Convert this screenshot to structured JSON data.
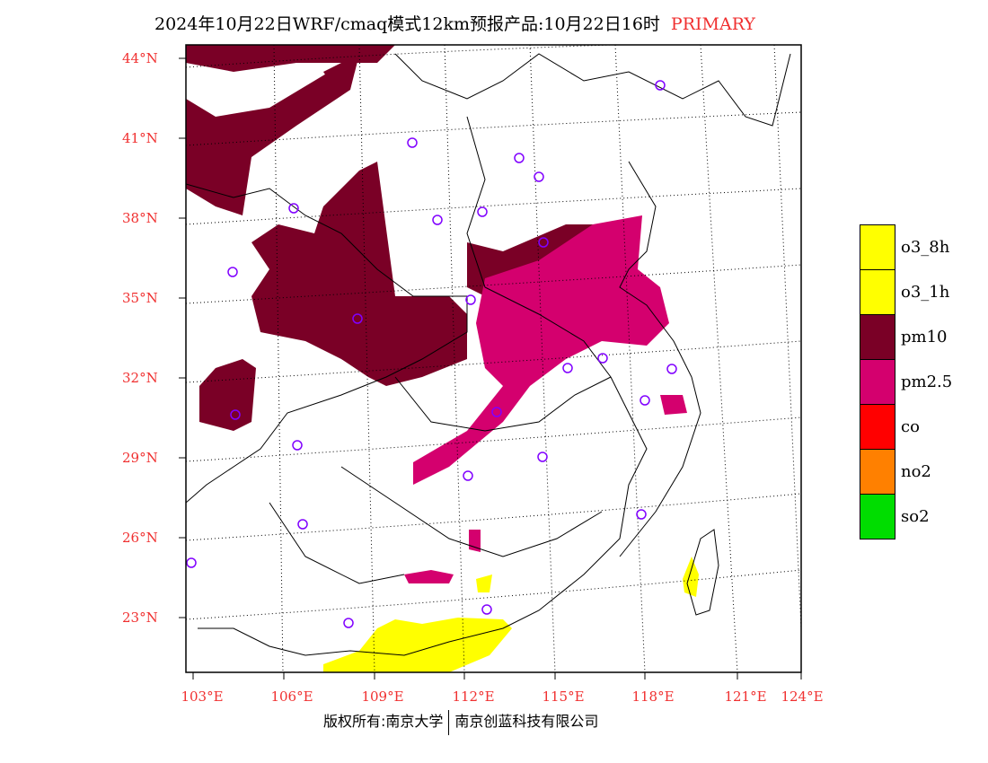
{
  "header": {
    "title": "2024年10月22日WRF/cmaq模式12km预报产品:10月22日16时",
    "tag": "PRIMARY"
  },
  "axes": {
    "lat_labels": [
      "44°N",
      "41°N",
      "38°N",
      "35°N",
      "32°N",
      "29°N",
      "26°N",
      "23°N"
    ],
    "lon_labels": [
      "103°E",
      "106°E",
      "109°E",
      "112°E",
      "115°E",
      "118°E",
      "121°E",
      "124°E"
    ]
  },
  "legend": [
    {
      "label": "o3_8h",
      "color": "#ffff00"
    },
    {
      "label": "o3_1h",
      "color": "#ffff00"
    },
    {
      "label": "pm10",
      "color": "#7a0026"
    },
    {
      "label": "pm2.5",
      "color": "#d4006e"
    },
    {
      "label": "co",
      "color": "#ff0000"
    },
    {
      "label": "no2",
      "color": "#ff8000"
    },
    {
      "label": "so2",
      "color": "#00dd00"
    }
  ],
  "footer": {
    "left": "版权所有:南京大学",
    "right": "南京创蓝科技有限公司"
  }
}
